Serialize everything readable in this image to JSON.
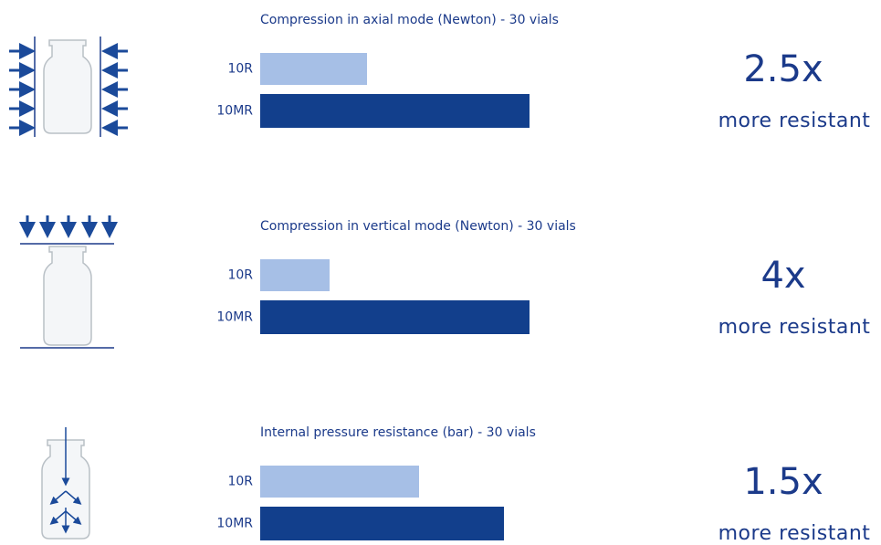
{
  "chart_data": [
    {
      "type": "bar",
      "title": "Compression in axial mode (Newton) - 30 vials",
      "categories": [
        "10R",
        "10MR"
      ],
      "values": [
        117,
        295
      ],
      "colors": [
        "#a6bfe6",
        "#123f8c"
      ],
      "factor": "2.5x",
      "note": "more resistant"
    },
    {
      "type": "bar",
      "title": "Compression in vertical mode (Newton) - 30 vials",
      "categories": [
        "10R",
        "10MR"
      ],
      "values": [
        76,
        295
      ],
      "colors": [
        "#a6bfe6",
        "#123f8c"
      ],
      "factor": "4x",
      "note": "more resistant"
    },
    {
      "type": "bar",
      "title": "Internal pressure resistance (bar) - 30 vials",
      "categories": [
        "10R",
        "10MR"
      ],
      "values": [
        174,
        267
      ],
      "colors": [
        "#a6bfe6",
        "#123f8c"
      ],
      "factor": "1.5x",
      "note": "more resistant"
    }
  ]
}
